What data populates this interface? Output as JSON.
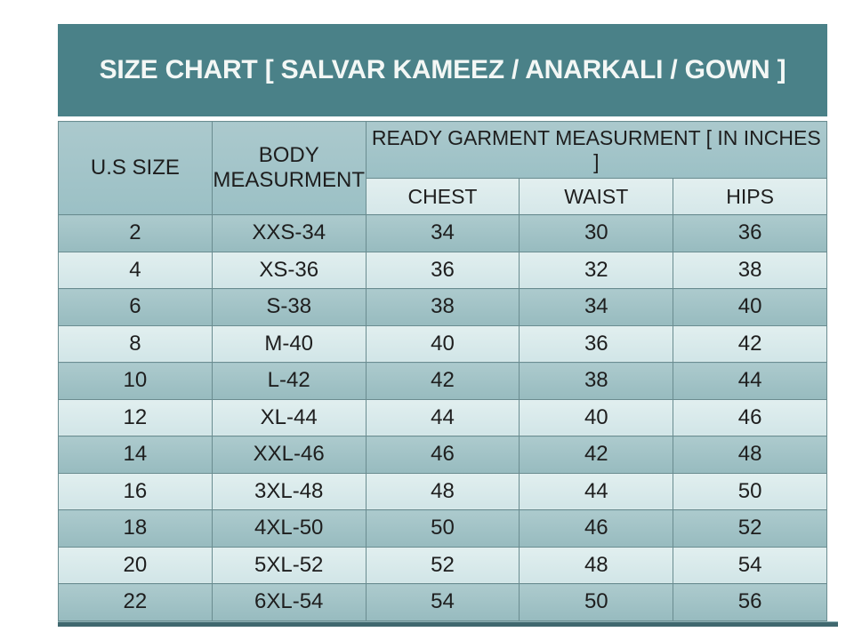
{
  "title": "SIZE CHART [ SALVAR KAMEEZ / ANARKALI / GOWN ]",
  "colors": {
    "title_band": "#4A8188",
    "title_text": "#F3F7F5",
    "header_cell": "#A2C4C8",
    "subheader_cell": "#DCEBEC",
    "row_dark": "#A0C0C4",
    "row_light": "#D9E9EA",
    "cell_border": "#6A8C90",
    "bottom_bar": "#40686F",
    "cell_text": "#1E1E1E"
  },
  "chart_data": {
    "type": "table",
    "title": "SIZE CHART [ SALVAR KAMEEZ / ANARKALI / GOWN ]",
    "columns": [
      "U.S SIZE",
      "BODY MEASURMENT",
      "CHEST",
      "WAIST",
      "HIPS"
    ],
    "column_group": {
      "label": "READY GARMENT MEASURMENT [ IN INCHES ]",
      "spans": [
        "CHEST",
        "WAIST",
        "HIPS"
      ]
    },
    "rows": [
      [
        "2",
        "XXS-34",
        "34",
        "30",
        "36"
      ],
      [
        "4",
        "XS-36",
        "36",
        "32",
        "38"
      ],
      [
        "6",
        "S-38",
        "38",
        "34",
        "40"
      ],
      [
        "8",
        "M-40",
        "40",
        "36",
        "42"
      ],
      [
        "10",
        "L-42",
        "42",
        "38",
        "44"
      ],
      [
        "12",
        "XL-44",
        "44",
        "40",
        "46"
      ],
      [
        "14",
        "XXL-46",
        "46",
        "42",
        "48"
      ],
      [
        "16",
        "3XL-48",
        "48",
        "44",
        "50"
      ],
      [
        "18",
        "4XL-50",
        "50",
        "46",
        "52"
      ],
      [
        "20",
        "5XL-52",
        "52",
        "48",
        "54"
      ],
      [
        "22",
        "6XL-54",
        "54",
        "50",
        "56"
      ]
    ]
  }
}
